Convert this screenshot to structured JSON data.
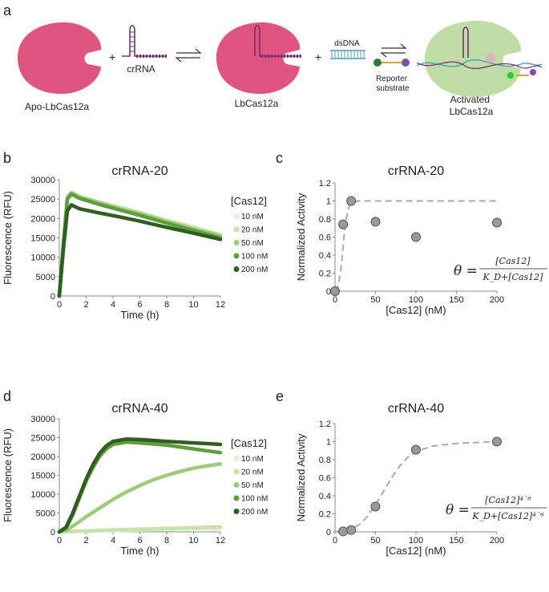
{
  "panel_a": {
    "label": "a",
    "species": [
      "Apo-LbCas12a",
      "crRNA",
      "LbCas12a",
      "dsDNA",
      "Reporter substrate",
      "Activated LbCas12a"
    ],
    "plus": "+",
    "colors": {
      "cas": "#e0557f",
      "cas_active": "#b8d99a",
      "crrna": "#7a2e73",
      "dsdna": "#4aa3b5",
      "reporter_green": "#2e7d32",
      "reporter_purple": "#7b4fb0"
    }
  },
  "chart_data": [
    {
      "panel": "b",
      "type": "line",
      "title": "crRNA-20",
      "xlabel": "Time (h)",
      "ylabel": "Fluorescence (RFU)",
      "xlim": [
        0,
        12
      ],
      "ylim": [
        0,
        30000
      ],
      "xticks": [
        0,
        2,
        4,
        6,
        8,
        10,
        12
      ],
      "yticks": [
        0,
        5000,
        10000,
        15000,
        20000,
        25000,
        30000
      ],
      "legend_title": "[Cas12]",
      "series": [
        {
          "name": "10 nM",
          "color": "#e3f0d2",
          "x": [
            0,
            0.3,
            0.6,
            0.9,
            1.5,
            3,
            4.5,
            6,
            8,
            10,
            12
          ],
          "y": [
            0,
            12000,
            25000,
            26500,
            25500,
            24000,
            22800,
            21500,
            19500,
            17800,
            15800
          ]
        },
        {
          "name": "20 nM",
          "color": "#c8e2a8",
          "x": [
            0,
            0.3,
            0.6,
            0.9,
            1.5,
            3,
            4.5,
            6,
            8,
            10,
            12
          ],
          "y": [
            0,
            12500,
            25500,
            26800,
            25700,
            24200,
            22900,
            21500,
            19500,
            17700,
            15700
          ]
        },
        {
          "name": "50 nM",
          "color": "#9ccc78",
          "x": [
            0,
            0.3,
            0.6,
            0.9,
            1.5,
            3,
            4.5,
            6,
            8,
            10,
            12
          ],
          "y": [
            0,
            13000,
            25500,
            26500,
            25500,
            24000,
            22500,
            21200,
            19200,
            17300,
            15500
          ]
        },
        {
          "name": "100 nM",
          "color": "#5e9c3f",
          "x": [
            0,
            0.3,
            0.6,
            0.9,
            1.5,
            3,
            4.5,
            6,
            8,
            10,
            12
          ],
          "y": [
            0,
            13500,
            25000,
            26300,
            25200,
            23600,
            22200,
            20800,
            18800,
            16900,
            15000
          ]
        },
        {
          "name": "200 nM",
          "color": "#2f5e1f",
          "x": [
            0,
            0.3,
            0.6,
            0.9,
            1.5,
            3,
            4.5,
            6,
            8,
            10,
            12
          ],
          "y": [
            0,
            12000,
            22000,
            23500,
            22500,
            21400,
            20400,
            19300,
            17700,
            16200,
            14600
          ]
        }
      ]
    },
    {
      "panel": "c",
      "type": "scatter",
      "title": "crRNA-20",
      "xlabel": "[Cas12] (nM)",
      "ylabel": "Normalized Activity",
      "xlim": [
        0,
        200
      ],
      "ylim": [
        0,
        1.2
      ],
      "xticks": [
        0,
        50,
        100,
        150,
        200
      ],
      "yticks": [
        0,
        0.2,
        0.4,
        0.6,
        0.8,
        1,
        1.2
      ],
      "points": {
        "x": [
          0,
          10,
          20,
          50,
          100,
          200
        ],
        "y": [
          0,
          0.74,
          1.0,
          0.77,
          0.6,
          0.76
        ]
      },
      "fit": {
        "x": [
          0,
          4,
          8,
          10,
          12,
          15,
          18,
          22,
          30,
          60,
          100,
          150,
          200
        ],
        "y": [
          0,
          0.05,
          0.3,
          0.5,
          0.68,
          0.86,
          0.95,
          0.99,
          1.0,
          1.0,
          1.0,
          1.0,
          1.0
        ]
      },
      "equation": {
        "lhs": "θ =",
        "numerator": "[Cas12]",
        "denominator": "K_D+[Cas12]"
      }
    },
    {
      "panel": "d",
      "type": "line",
      "title": "crRNA-40",
      "xlabel": "Time (h)",
      "ylabel": "Fluorescence (RFU)",
      "xlim": [
        0,
        12
      ],
      "ylim": [
        0,
        30000
      ],
      "xticks": [
        0,
        2,
        4,
        6,
        8,
        10,
        12
      ],
      "yticks": [
        0,
        5000,
        10000,
        15000,
        20000,
        25000,
        30000
      ],
      "legend_title": "[Cas12]",
      "series": [
        {
          "name": "10 nM",
          "color": "#e3f0d2",
          "x": [
            0,
            2,
            4,
            6,
            8,
            10,
            12
          ],
          "y": [
            0,
            150,
            350,
            500,
            650,
            800,
            900
          ]
        },
        {
          "name": "20 nM",
          "color": "#c8e2a8",
          "x": [
            0,
            2,
            4,
            6,
            8,
            10,
            12
          ],
          "y": [
            0,
            250,
            500,
            700,
            900,
            1100,
            1300
          ]
        },
        {
          "name": "50 nM",
          "color": "#9ccc78",
          "x": [
            0,
            0.5,
            1,
            2,
            3,
            4,
            5,
            6,
            7,
            8,
            9,
            10,
            11,
            12
          ],
          "y": [
            0,
            400,
            1500,
            4000,
            6300,
            8600,
            10600,
            12300,
            13800,
            15000,
            16000,
            16900,
            17500,
            18000
          ]
        },
        {
          "name": "100 nM",
          "color": "#5e9c3f",
          "x": [
            0,
            0.5,
            1,
            1.5,
            2,
            2.5,
            3,
            3.5,
            4,
            5,
            6,
            8,
            10,
            12
          ],
          "y": [
            0,
            1000,
            4500,
            9000,
            13500,
            17000,
            20000,
            22000,
            23200,
            23800,
            23600,
            23000,
            22000,
            21000
          ]
        },
        {
          "name": "200 nM",
          "color": "#2f5e1f",
          "x": [
            0,
            0.5,
            1,
            1.5,
            2,
            2.5,
            3,
            3.5,
            4,
            5,
            6,
            8,
            10,
            12
          ],
          "y": [
            0,
            1200,
            5000,
            9500,
            14000,
            17800,
            20800,
            22800,
            24000,
            24600,
            24500,
            24000,
            23600,
            23200
          ]
        }
      ]
    },
    {
      "panel": "e",
      "type": "scatter",
      "title": "crRNA-40",
      "xlabel": "[Cas12] (nM)",
      "ylabel": "Normalized Activity",
      "xlim": [
        0,
        200
      ],
      "ylim": [
        0,
        1.2
      ],
      "xticks": [
        0,
        50,
        100,
        150,
        200
      ],
      "yticks": [
        0,
        0.2,
        0.4,
        0.6,
        0.8,
        1,
        1.2
      ],
      "points": {
        "x": [
          10,
          20,
          50,
          100,
          200
        ],
        "y": [
          0.005,
          0.02,
          0.28,
          0.91,
          1.0
        ]
      },
      "fit": {
        "x": [
          0,
          10,
          20,
          30,
          40,
          50,
          60,
          70,
          80,
          90,
          100,
          120,
          150,
          200
        ],
        "y": [
          0,
          0.005,
          0.03,
          0.08,
          0.17,
          0.3,
          0.45,
          0.6,
          0.73,
          0.83,
          0.89,
          0.95,
          0.98,
          1.0
        ]
      },
      "equation": {
        "lhs": "θ =",
        "numerator": "[Cas12]⁴˙⁶",
        "denominator": "K_D+[Cas12]⁴˙⁶"
      }
    }
  ]
}
